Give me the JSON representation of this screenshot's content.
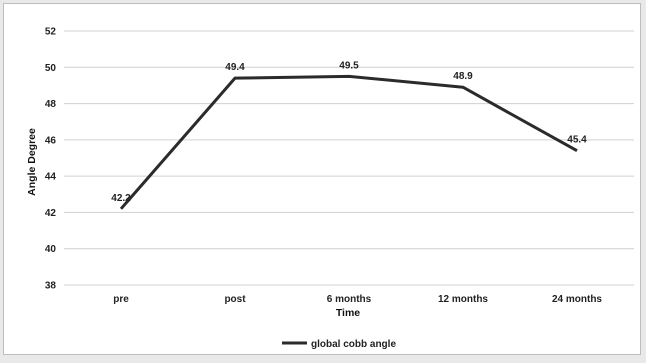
{
  "chart_data": {
    "type": "line",
    "categories": [
      "pre",
      "post",
      "6 months",
      "12 months",
      "24 months"
    ],
    "series": [
      {
        "name": "global cobb angle",
        "values": [
          42.2,
          49.4,
          49.5,
          48.9,
          45.4
        ]
      }
    ],
    "data_labels": [
      "42.2",
      "49.4",
      "49.5",
      "48.9",
      "45.4"
    ],
    "xlabel": "Time",
    "ylabel": "Angle Degree",
    "ylim": [
      38,
      52
    ],
    "yticks": [
      38,
      40,
      42,
      44,
      46,
      48,
      50,
      52
    ],
    "grid": true,
    "legend": "bottom",
    "colors": {
      "line": "#2b2b2b",
      "grid": "#d0d0d0",
      "text": "#222222"
    }
  }
}
